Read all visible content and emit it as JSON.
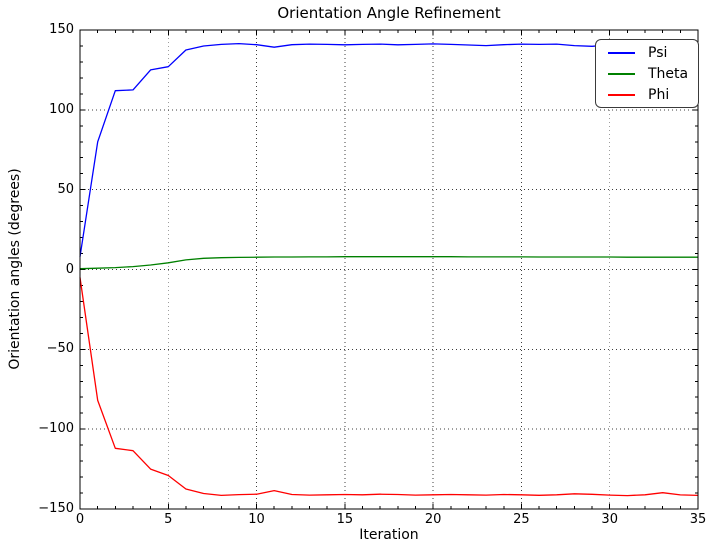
{
  "chart_data": {
    "type": "line",
    "title": "Orientation Angle Refinement",
    "xlabel": "Iteration",
    "ylabel": "Orientation angles (degrees)",
    "xlim": [
      0,
      35
    ],
    "ylim": [
      -150,
      150
    ],
    "xticks": [
      0,
      5,
      10,
      15,
      20,
      25,
      30,
      35
    ],
    "yticks": [
      -150,
      -100,
      -50,
      0,
      50,
      100,
      150
    ],
    "x_minor_step": 1,
    "y_minor_step": 10,
    "grid": "dotted",
    "legend_position": "upper right",
    "background_color": "#ffffff",
    "axis_color": "#000000",
    "grid_color": "#3c3c3c",
    "x": [
      0,
      1,
      2,
      3,
      4,
      5,
      6,
      7,
      8,
      9,
      10,
      11,
      12,
      13,
      14,
      15,
      16,
      17,
      18,
      19,
      20,
      21,
      22,
      23,
      24,
      25,
      26,
      27,
      28,
      29,
      30,
      31,
      32,
      33,
      34,
      35
    ],
    "series": [
      {
        "name": "Psi",
        "color": "#0000ff",
        "values": [
          8,
          80,
          112,
          112.5,
          125,
          127,
          137.5,
          140,
          141,
          141.5,
          140.8,
          139.2,
          140.8,
          141.2,
          141,
          140.7,
          141,
          141.2,
          140.7,
          141,
          141.3,
          141,
          140.6,
          140.2,
          140.8,
          141.2,
          141,
          141.2,
          140.2,
          139.8,
          140.7,
          141.2,
          141,
          140.9,
          140.7,
          141.2
        ]
      },
      {
        "name": "Theta",
        "color": "#008000",
        "values": [
          0.5,
          0.8,
          1.2,
          1.8,
          2.8,
          4.2,
          6.0,
          7.0,
          7.4,
          7.6,
          7.7,
          7.8,
          7.8,
          7.9,
          7.9,
          8.0,
          8.0,
          8.0,
          8.0,
          8.0,
          8.0,
          8.0,
          7.9,
          7.9,
          7.9,
          7.9,
          7.8,
          7.8,
          7.8,
          7.8,
          7.8,
          7.7,
          7.7,
          7.7,
          7.7,
          7.7
        ]
      },
      {
        "name": "Phi",
        "color": "#ff0000",
        "values": [
          -5,
          -82,
          -112,
          -113.5,
          -125,
          -129,
          -137.5,
          -140.3,
          -141.5,
          -141,
          -140.7,
          -138.5,
          -140.9,
          -141.3,
          -141.1,
          -140.9,
          -141.1,
          -140.7,
          -140.9,
          -141.3,
          -141.1,
          -140.9,
          -141.1,
          -141.3,
          -140.9,
          -141.1,
          -141.4,
          -141.1,
          -140.5,
          -140.8,
          -141.3,
          -141.6,
          -141.1,
          -139.8,
          -141.2,
          -141.5
        ]
      }
    ]
  }
}
